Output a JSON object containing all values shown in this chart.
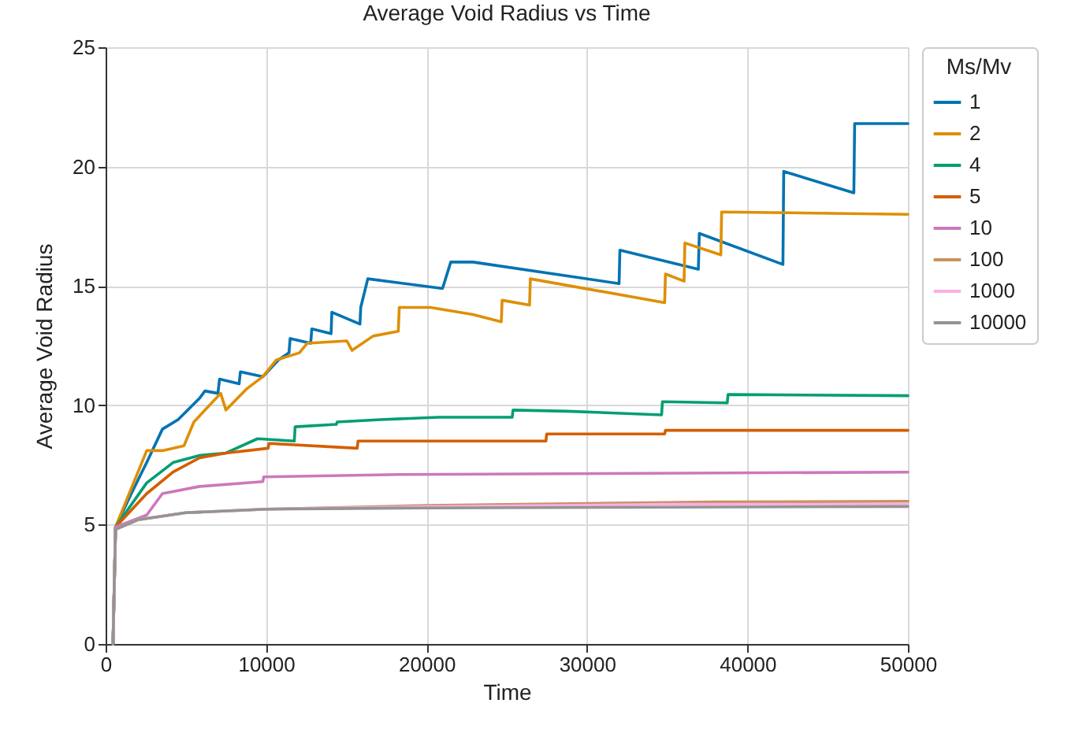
{
  "chart_data": {
    "type": "line",
    "title": "Average Void Radius vs Time",
    "xlabel": "Time",
    "ylabel": "Average Void Radius",
    "legend_title": "Ms/Mv",
    "legend": "right",
    "grid": true,
    "xlim": [
      0,
      50000
    ],
    "ylim": [
      0,
      25
    ],
    "xticks": [
      0,
      10000,
      20000,
      30000,
      40000,
      50000
    ],
    "yticks": [
      0,
      5,
      10,
      15,
      20,
      25
    ],
    "series": [
      {
        "name": "1",
        "color": "#0173b2",
        "x": [
          460,
          620,
          1600,
          2560,
          3540,
          4520,
          5860,
          6190,
          7000,
          7100,
          8320,
          8400,
          9800,
          10770,
          11430,
          11500,
          12780,
          12850,
          14050,
          14100,
          15850,
          15900,
          16340,
          20920,
          21000,
          21510,
          22890,
          32000,
          32050,
          36940,
          37000,
          42210,
          42260,
          46630,
          46680,
          50000
        ],
        "values": [
          0,
          4.9,
          6.3,
          7.6,
          9.0,
          9.4,
          10.3,
          10.6,
          10.5,
          11.1,
          10.9,
          11.4,
          11.2,
          11.9,
          12.2,
          12.8,
          12.6,
          13.2,
          13.0,
          13.9,
          13.4,
          14.1,
          15.3,
          14.9,
          14.9,
          16.0,
          16.0,
          15.1,
          16.5,
          15.7,
          17.2,
          15.9,
          19.8,
          18.9,
          21.8,
          21.8
        ]
      },
      {
        "name": "2",
        "color": "#de8f05",
        "x": [
          460,
          620,
          2560,
          3540,
          4880,
          5500,
          7170,
          7500,
          8810,
          9800,
          10640,
          12080,
          12570,
          15030,
          15360,
          16670,
          18240,
          18300,
          20240,
          22890,
          24660,
          24710,
          26420,
          26470,
          34840,
          34890,
          36050,
          36100,
          38340,
          38390,
          50000
        ],
        "values": [
          0,
          4.9,
          8.1,
          8.1,
          8.3,
          9.3,
          10.5,
          9.8,
          10.7,
          11.2,
          11.9,
          12.2,
          12.6,
          12.7,
          12.3,
          12.9,
          13.1,
          14.1,
          14.1,
          13.8,
          13.5,
          14.4,
          14.2,
          15.3,
          14.3,
          15.5,
          15.2,
          16.8,
          16.3,
          18.1,
          18.0
        ]
      },
      {
        "name": "4",
        "color": "#029e73",
        "x": [
          460,
          620,
          2560,
          4200,
          5860,
          7500,
          9470,
          11760,
          11810,
          14380,
          14430,
          17140,
          20750,
          25340,
          25390,
          28790,
          34650,
          34700,
          38740,
          38790,
          50000
        ],
        "values": [
          0,
          4.9,
          6.75,
          7.6,
          7.9,
          8.0,
          8.6,
          8.5,
          9.1,
          9.2,
          9.3,
          9.4,
          9.5,
          9.5,
          9.8,
          9.75,
          9.6,
          10.15,
          10.1,
          10.45,
          10.4
        ]
      },
      {
        "name": "5",
        "color": "#d55e00",
        "x": [
          460,
          620,
          2560,
          4200,
          5860,
          7500,
          10130,
          10180,
          15680,
          15730,
          27440,
          27490,
          34840,
          34890,
          50000
        ],
        "values": [
          0,
          4.9,
          6.3,
          7.2,
          7.8,
          8.0,
          8.2,
          8.4,
          8.2,
          8.5,
          8.5,
          8.8,
          8.8,
          8.95,
          8.95
        ]
      },
      {
        "name": "10",
        "color": "#cc78bc",
        "x": [
          460,
          620,
          2560,
          3540,
          5860,
          9800,
          9850,
          18240,
          50000
        ],
        "values": [
          0,
          4.9,
          5.4,
          6.3,
          6.6,
          6.8,
          7.0,
          7.1,
          7.2
        ]
      },
      {
        "name": "100",
        "color": "#ca9161",
        "x": [
          460,
          620,
          2000,
          5000,
          10000,
          20000,
          38000,
          50000
        ],
        "values": [
          0,
          4.8,
          5.2,
          5.5,
          5.65,
          5.8,
          5.95,
          5.98
        ]
      },
      {
        "name": "1000",
        "color": "#fbafe4",
        "x": [
          460,
          620,
          2000,
          5000,
          10000,
          20000,
          35000,
          50000
        ],
        "values": [
          0,
          4.8,
          5.2,
          5.5,
          5.65,
          5.75,
          5.85,
          5.85
        ]
      },
      {
        "name": "10000",
        "color": "#949494",
        "x": [
          460,
          620,
          2000,
          5000,
          10000,
          20000,
          50000
        ],
        "values": [
          0,
          4.8,
          5.2,
          5.5,
          5.65,
          5.7,
          5.76
        ]
      }
    ]
  }
}
